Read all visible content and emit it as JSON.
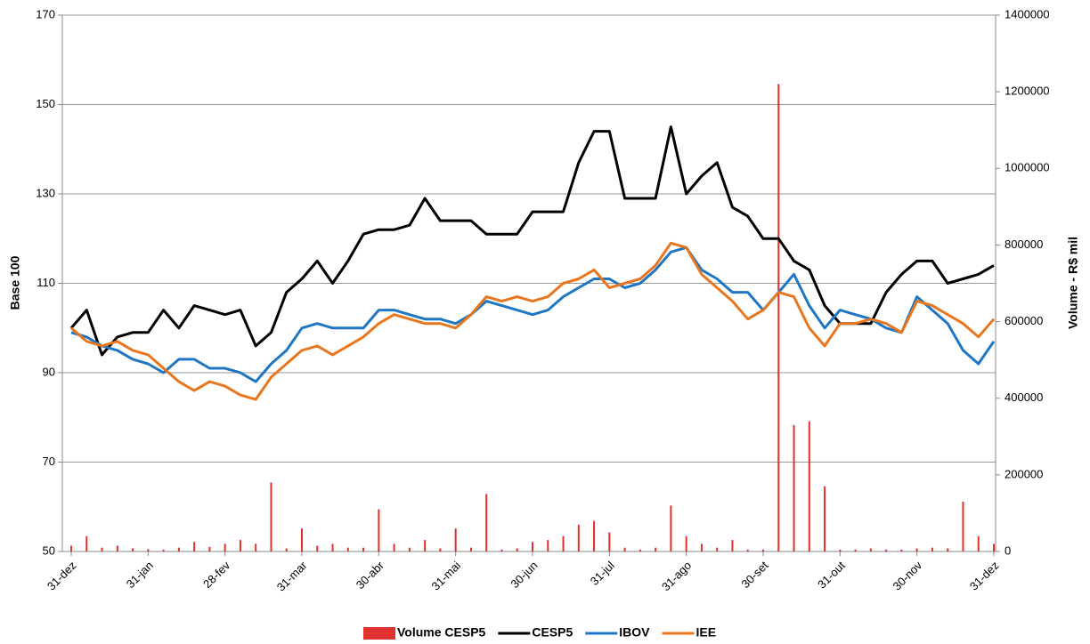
{
  "chart_data": {
    "type": "line",
    "ylabel": "Base 100",
    "y2label": "Volume - R$ mil",
    "categories": [
      "31-dez",
      null,
      null,
      null,
      null,
      "31-jan",
      null,
      null,
      null,
      null,
      "28-fev",
      null,
      null,
      null,
      null,
      "31-mar",
      null,
      null,
      null,
      null,
      "30-abr",
      null,
      null,
      null,
      null,
      "31-mai",
      null,
      null,
      null,
      null,
      "30-jun",
      null,
      null,
      null,
      null,
      "31-jul",
      null,
      null,
      null,
      null,
      "31-ago",
      null,
      null,
      null,
      null,
      "30-set",
      null,
      null,
      null,
      null,
      "31-out",
      null,
      null,
      null,
      null,
      "30-nov",
      null,
      null,
      null,
      null,
      "31-dez"
    ],
    "ylim": [
      50,
      170
    ],
    "yticks": [
      50,
      70,
      90,
      110,
      130,
      150,
      170
    ],
    "y2lim": [
      0,
      1400000
    ],
    "y2ticks": [
      0,
      200000,
      400000,
      600000,
      800000,
      1000000,
      1200000,
      1400000
    ],
    "grid": true,
    "legend": "bottom",
    "series": [
      {
        "name": "Volume CESP5",
        "color": "#e03030",
        "kind": "bar",
        "axis": "y2",
        "values": [
          15000,
          40000,
          10000,
          15000,
          8000,
          6000,
          5000,
          10000,
          25000,
          12000,
          20000,
          30000,
          20000,
          180000,
          8000,
          60000,
          15000,
          20000,
          10000,
          10000,
          110000,
          20000,
          10000,
          30000,
          8000,
          60000,
          10000,
          150000,
          5000,
          8000,
          25000,
          30000,
          40000,
          70000,
          80000,
          50000,
          10000,
          5000,
          10000,
          120000,
          40000,
          20000,
          10000,
          30000,
          5000,
          5000,
          1220000,
          330000,
          340000,
          170000,
          5000,
          5000,
          8000,
          5000,
          5000,
          8000,
          10000,
          8000,
          130000,
          40000,
          20000
        ]
      },
      {
        "name": "CESP5",
        "color": "#000000",
        "kind": "line",
        "values": [
          100,
          104,
          94,
          98,
          99,
          99,
          104,
          100,
          105,
          104,
          103,
          104,
          96,
          99,
          108,
          111,
          115,
          110,
          115,
          121,
          122,
          122,
          123,
          129,
          124,
          124,
          124,
          121,
          121,
          121,
          126,
          126,
          126,
          137,
          144,
          144,
          129,
          129,
          129,
          145,
          130,
          134,
          137,
          127,
          125,
          120,
          120,
          115,
          113,
          105,
          101,
          101,
          101,
          108,
          112,
          115,
          115,
          110,
          111,
          112,
          114
        ]
      },
      {
        "name": "IBOV",
        "color": "#1f77c4",
        "kind": "line",
        "values": [
          99,
          98,
          96,
          95,
          93,
          92,
          90,
          93,
          93,
          91,
          91,
          90,
          88,
          92,
          95,
          100,
          101,
          100,
          100,
          100,
          104,
          104,
          103,
          102,
          102,
          101,
          103,
          106,
          105,
          104,
          103,
          104,
          107,
          109,
          111,
          111,
          109,
          110,
          113,
          117,
          118,
          113,
          111,
          108,
          108,
          104,
          108,
          112,
          105,
          100,
          104,
          103,
          102,
          100,
          99,
          107,
          104,
          101,
          95,
          92,
          97
        ]
      },
      {
        "name": "IEE",
        "color": "#e8761e",
        "kind": "line",
        "values": [
          100,
          97,
          96,
          97,
          95,
          94,
          91,
          88,
          86,
          88,
          87,
          85,
          84,
          89,
          92,
          95,
          96,
          94,
          96,
          98,
          101,
          103,
          102,
          101,
          101,
          100,
          103,
          107,
          106,
          107,
          106,
          107,
          110,
          111,
          113,
          109,
          110,
          111,
          114,
          119,
          118,
          112,
          109,
          106,
          102,
          104,
          108,
          107,
          100,
          96,
          101,
          101,
          102,
          101,
          99,
          106,
          105,
          103,
          101,
          98,
          102
        ]
      }
    ]
  }
}
